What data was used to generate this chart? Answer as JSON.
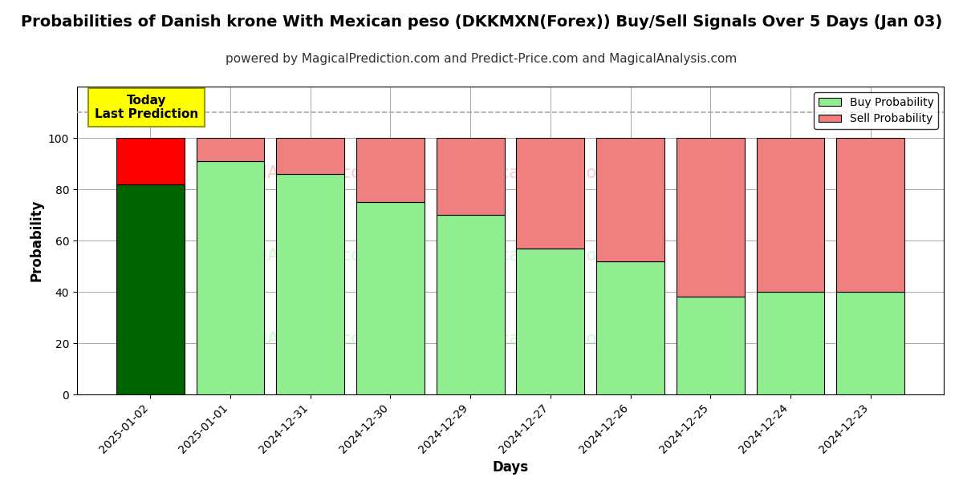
{
  "title": "Probabilities of Danish krone With Mexican peso (DKKMXN(Forex)) Buy/Sell Signals Over 5 Days (Jan 03)",
  "subtitle": "powered by MagicalPrediction.com and Predict-Price.com and MagicalAnalysis.com",
  "xlabel": "Days",
  "ylabel": "Probability",
  "categories": [
    "2025-01-02",
    "2025-01-01",
    "2024-12-31",
    "2024-12-30",
    "2024-12-29",
    "2024-12-27",
    "2024-12-26",
    "2024-12-25",
    "2024-12-24",
    "2024-12-23"
  ],
  "buy_values": [
    82,
    91,
    86,
    75,
    70,
    57,
    52,
    38,
    40,
    40
  ],
  "sell_values": [
    18,
    9,
    14,
    25,
    30,
    43,
    48,
    62,
    60,
    60
  ],
  "buy_color_first": "#006400",
  "buy_color_rest": "#90EE90",
  "sell_color_first": "#FF0000",
  "sell_color_rest": "#F08080",
  "bar_edge_color": "#000000",
  "grid_color": "#aaaaaa",
  "bg_color": "#ffffff",
  "annotation_text": "Today\nLast Prediction",
  "annotation_bg": "#FFFF00",
  "dashed_line_y": 110,
  "ylim_max": 120,
  "yticks": [
    0,
    20,
    40,
    60,
    80,
    100
  ],
  "title_fontsize": 14,
  "subtitle_fontsize": 11,
  "label_fontsize": 12,
  "tick_fontsize": 10,
  "bar_width": 0.85
}
